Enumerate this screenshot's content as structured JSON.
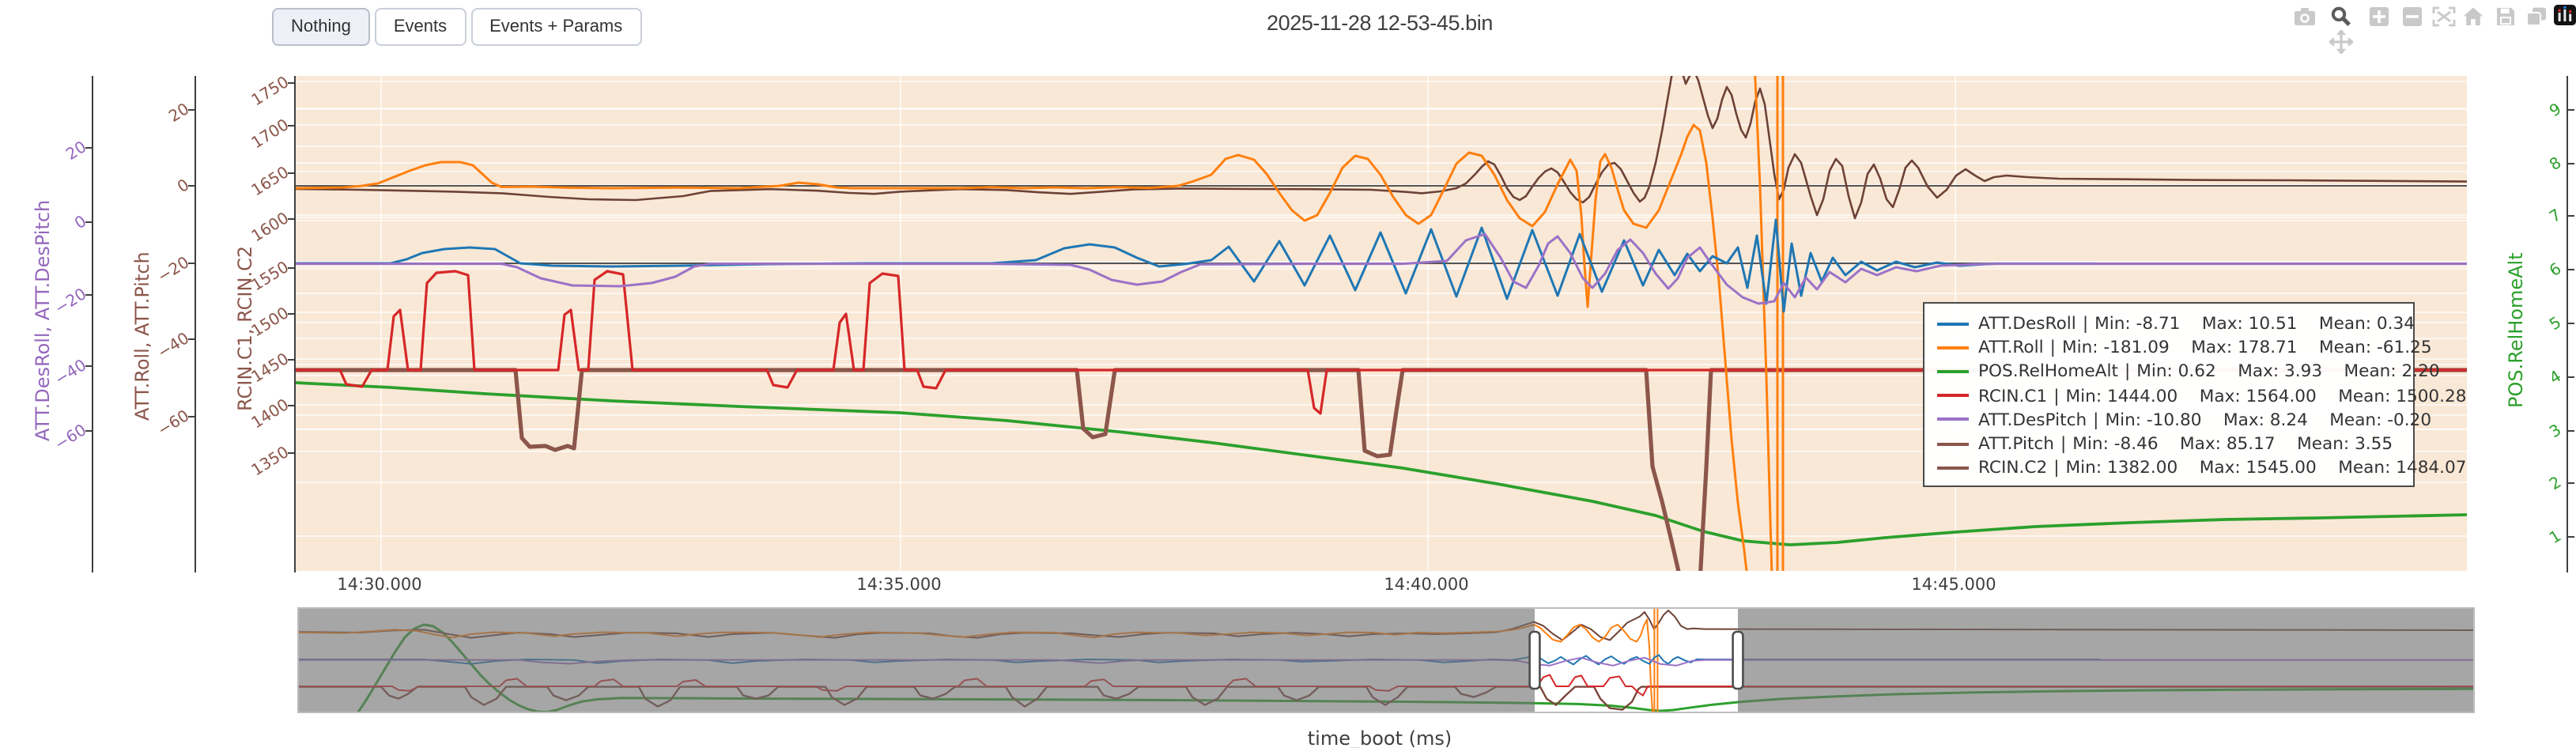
{
  "toolbar": {
    "buttons": [
      {
        "label": "Nothing",
        "active": true
      },
      {
        "label": "Events",
        "active": false
      },
      {
        "label": "Events + Params",
        "active": false
      }
    ]
  },
  "header": {
    "title": "2025-11-28 12-53-45.bin"
  },
  "modebar": {
    "icons": [
      "camera-icon",
      "zoom-icon",
      "pan-icon",
      "zoom-in-icon",
      "zoom-out-icon",
      "autoscale-icon",
      "home-icon",
      "save-icon",
      "copy-icon",
      "plotly-logo-icon"
    ]
  },
  "axes": {
    "y1": {
      "title": "ATT.DesRoll, ATT.DesPitch",
      "color": "#9467bd",
      "ticks": [
        "20",
        "0",
        "−20",
        "−40",
        "−60"
      ]
    },
    "y2": {
      "title": "ATT.Roll, ATT.Pitch",
      "color": "#8c564b",
      "ticks": [
        "20",
        "0",
        "−20",
        "−40",
        "−60"
      ]
    },
    "y3": {
      "title": "RCIN.C1, RCIN.C2",
      "color": "#8c564b",
      "ticks": [
        "1750",
        "1700",
        "1650",
        "1600",
        "1550",
        "1500",
        "1450",
        "1400",
        "1350"
      ]
    },
    "y4": {
      "title": "POS.RelHomeAlt",
      "color": "#2ca02c",
      "ticks": [
        "9",
        "8",
        "7",
        "6",
        "5",
        "4",
        "3",
        "2",
        "1"
      ]
    },
    "x": {
      "title": "time_boot (ms)",
      "ticks": [
        "14:30.000",
        "14:35.000",
        "14:40.000",
        "14:45.000"
      ]
    }
  },
  "legend": {
    "separator": "|",
    "entries": [
      {
        "name": "ATT.DesRoll",
        "color": "#1f77b4",
        "stats": "Min: -8.71    Max: 10.51    Mean: 0.34"
      },
      {
        "name": "ATT.Roll",
        "color": "#ff7f0e",
        "stats": "Min: -181.09    Max: 178.71    Mean: -61.25"
      },
      {
        "name": "POS.RelHomeAlt",
        "color": "#2ca02c",
        "stats": "Min: 0.62    Max: 3.93    Mean: 2.20"
      },
      {
        "name": "RCIN.C1",
        "color": "#d62728",
        "stats": "Min: 1444.00    Max: 1564.00    Mean: 1500.28"
      },
      {
        "name": "ATT.DesPitch",
        "color": "#9b72c7",
        "stats": "Min: -10.80    Max: 8.24    Mean: -0.20"
      },
      {
        "name": "ATT.Pitch",
        "color": "#8c564b",
        "stats": "Min: -8.46    Max: 85.17    Mean: 3.55"
      },
      {
        "name": "RCIN.C2",
        "color": "#8c564b",
        "stats": "Min: 1382.00    Max: 1545.00    Mean: 1484.07"
      }
    ]
  },
  "chart_data": {
    "type": "line",
    "title": "2025-11-28 12-53-45.bin",
    "xlabel": "time_boot (ms)",
    "x_tick_labels": [
      "14:30.000",
      "14:35.000",
      "14:40.000",
      "14:45.000"
    ],
    "legend_position": "right-middle",
    "grid": true,
    "y_axes": [
      {
        "id": "y1",
        "label": "ATT.DesRoll, ATT.DesPitch",
        "range_ticks": [
          20,
          0,
          -20,
          -40,
          -60
        ]
      },
      {
        "id": "y2",
        "label": "ATT.Roll, ATT.Pitch",
        "range_ticks": [
          20,
          0,
          -20,
          -40,
          -60
        ]
      },
      {
        "id": "y3",
        "label": "RCIN.C1, RCIN.C2",
        "range_ticks": [
          1750,
          1700,
          1650,
          1600,
          1550,
          1500,
          1450,
          1400,
          1350
        ]
      },
      {
        "id": "y4",
        "label": "POS.RelHomeAlt",
        "range_ticks": [
          9,
          8,
          7,
          6,
          5,
          4,
          3,
          2,
          1
        ],
        "side": "right"
      }
    ],
    "series": [
      {
        "name": "POS.RelHomeAlt",
        "axis": "y4",
        "color": "#2ca02c",
        "width": 1.9,
        "min": 0.62,
        "max": 3.93,
        "mean": 2.2,
        "segments": [
          "0,194 60,197 120,201 200,205.5 280,209 382,213 450,218 520,225 580,232 640,240 700,248 760,258 820,269 860,278 890,288 915,294 945,296.5 975,295 1005,292 1049,288.5 1100,285 1160,282.5 1220,280.5 1280,279.5 1373,277.5"
        ]
      },
      {
        "name": "RCIN.C2",
        "axis": "y3",
        "color": "#8c564b",
        "width": 2.6,
        "min": 1382.0,
        "max": 1545.0,
        "mean": 1484.07,
        "segments": [
          "0,186 139,186 143,229 148,234.5 158,234 164,236.5 172,234 176,235.5 181,186 494,186 498,223 504,228.5 512,226.5 518,186 672,186 676,237 684,240.5 692,239.5 696,212 700,186 854,186 858,247 864,269 870,294 876,320 888,320 892,248 895,186 1373,186"
        ]
      },
      {
        "name": "RCIN.C1",
        "axis": "y3",
        "color": "#d62728",
        "width": 1.6,
        "min": 1444.0,
        "max": 1564.0,
        "mean": 1500.28,
        "segments": [
          "0,186 28,186 32,195 42,196.5 48,186 58,186 62,152 66,148 71,186 79,186 83,131 89,124.5 101,123.5 109,126 113,186 166,186 170,151 174,148 179,186 185,186 189,129 197,123.5 207,125.5 213,186 298,186 302,195.5 311,197 317,186 340,186 344,156 348,150.5 353,186 359,186 363,131 371,125 381,126.5 385,186 393,186 397,196.5 405,197.5 411,186 494,186 640,186 644,210 648,213.5 652,186 940,186 1373,186"
        ]
      },
      {
        "name": "ATT.Pitch",
        "axis": "y2",
        "color": "#6e4237",
        "width": 1.3,
        "min": -8.46,
        "max": 85.17,
        "mean": 3.55,
        "segments": [
          "0,71.5 40,72 80,72.8 100,73.2 130,74.2 160,76.5 185,78 215,78.5 245,76 262,72.8 300,71.6 330,72.6 350,74 366,74.6 382,73.2 420,71.6 450,72.2 470,73.6 490,74.6 510,73.2 530,71.8 560,71.2 600,71.5 640,71.6 680,72 700,73.2 712,74.2 724,73 734,71 740,68 746,62 750,57.5 754,54 758,56 762,63 766,71 770,76.5 774,78.5 778,76 782,70 786,64.5 790,60.5 794,58.5 798,61 802,67 806,73.5 810,78 814,80 818,76.5 822,68.5 826,61 830,56 834,55 838,59 842,66.5 846,74 850,79.5 853,77 856,70 860,55 864,35 868,12 871,-5 876,-5 879,5 881,1 884,-4 887,3 890,14 893,25 896,33 899,27 902,15 905,7 908,12 911,24 914,34 917,39 920,30 923,16 926,8 929,18 932,40 935,62 938,78 941,72 944,58 948,49.5 952,55 958,76 962,88 966,78 970,60 974,52.5 978,57 982,76 986,90 990,80 994,62 998,56 1002,65 1006,78 1010,83 1014,72 1018,58 1022,53.5 1026,58 1032,70 1038,77 1044,72 1050,63 1056,59 1062,63 1068,66.5 1074,64 1082,63 1095,64 1115,65 1150,65.3 1200,65.8 1260,66 1320,66.4 1373,66.8"
        ]
      },
      {
        "name": "ATT.Roll",
        "axis": "y2",
        "color": "#ff7f0e",
        "width": 1.5,
        "min": -181.09,
        "max": 178.71,
        "mean": -61.25,
        "segments": [
          "0,71 30,70.5 42,69.5 52,68 62,64 72,60 82,56.5 92,54.5 104,54.5 112,56.5 118,62 124,67.5 130,70.2 150,70 170,70.6 200,71 240,70.6 280,71 306,69.5 318,67.5 330,68.5 342,70.5 352,71 420,71 440,70.3 460,71 480,70.5 500,71 520,70.4 540,70.8 558,69.5 568,66.5 579,62.5 588,52.5 596,50 606,53 614,62 622,74 630,85 638,91.5 646,88 654,74 662,58 670,50.5 678,52.5 686,62.5 694,76.5 702,88 710,93.5 718,88 726,72 734,55.5 742,48.5 750,50.5 758,62.5 766,78.5 774,90 782,95 790,86 798,68.5 806,53 810,60 813,88 815,120 817,146 819,118 822,78 825,54 828,49.5 832,58 836,72 840,85 846,93.5 854,96 862,85 870,65 876,50 880,38.5 884,31 888,34.5 892,55 896,90 900,130 904,180 908,230 912,270 916,300 920,335",
          "922,-20 926,70 930,190 934,335",
          "937,-20 937,335",
          "940.5,-20 940.5,335"
        ]
      },
      {
        "name": "ATT.DesRoll",
        "axis": "y1",
        "color": "#1f77b4",
        "width": 1.5,
        "min": -8.71,
        "max": 10.51,
        "mean": 0.34,
        "segments": [
          "0,118.5 60,118.5 70,116 80,112 94,109.5 110,108.5 126,109.5 134,114 142,118.5 162,120 200,120.5 245,120 300,119 360,118.5 440,118.5 468,116.5 486,109 502,106.5 518,108.5 532,115 546,120.5 562,119 579,116.5 590,108 606,130 622,104.5 638,132.5 654,101 670,135.5 686,99 702,137.5 718,97 734,139.5 750,96 766,141 782,97.5 798,139 812,100 826,136.5 840,104 852,132.5 862,110 872,126 880,112.5 888,123.5 896,114 905,118.5 912,108.5 918,134 924,101 930,144 936,91 941,149 946,106 952,139 958,112 965,130 972,115 980,126 990,117.5 1000,123 1012,117.5 1024,121 1038,118 1052,120 1075,118.7 1138,118.7"
        ]
      },
      {
        "name": "ATT.DesPitch",
        "axis": "y1",
        "color": "#9b72c7",
        "width": 1.5,
        "min": -10.8,
        "max": 8.24,
        "mean": -0.2,
        "segments": [
          "0,118.8 130,118.8 140,121 155,128 175,132.5 205,133 225,131 240,127 252,120.5 262,118.8 440,118.8 490,119.5 502,122.5 516,129 532,132 548,130 560,124 572,119.2 640,118.8 700,118.8 728,117 740,104 752,100 762,115 770,130 778,134 786,120 792,106 798,101.5 806,112 814,128 820,134 828,125 836,110 844,103.5 852,112 860,125 868,134.5 874,128 880,115 888,108.5 896,120 905,132 915,140 925,144 935,142.5 941,131 948,140 955,127.5 962,135 970,124 980,130.5 990,122 1000,126 1012,121 1025,123.5 1040,120 1060,119.2 1075,118.8 1373,118.8"
        ]
      }
    ],
    "rangeslider": {
      "selection_fraction": [
        0.568,
        0.662
      ],
      "series": [
        {
          "name": "POS.RelHomeAlt",
          "color": "#2ca02c",
          "width": 1.5,
          "segments": [
            "38,67 44,58 50,48 56,38 62,28 68,19 74,13.5 80,11 86,12 92,16 98,22 104,29 110,36 116,43 122,49 128,54 134,58.5 140,62 146,64.5 152,66 158,66.3 164,65 172,62 180,59.6 190,58.2 205,57.4 260,57.6 330,57.9 400,58.1 470,58.4 540,58.7 610,59.1 680,59.6 740,60.1 780,60.6 810,61.2 830,62.2 845,63.7 855,65 862,65.5 870,65 880,63.6 895,61.6 915,59.6 940,57.9 975,56.3 1010,55 1060,53.9 1110,53.1 1170,52.5 1230,52.1 1290,51.9 1377,51.6"
          ]
        },
        {
          "name": "RCIN.C2",
          "color": "#7a463a",
          "width": 1.2,
          "segments": [
            "0,50.3 53,50.3 58,55.8 64,57.8 70,54.8 76,50.3 106,50.3 110,56.8 118,61.8 126,57.8 132,50.3 158,50.3 162,55.8 170,58.8 178,55.8 184,50.3 216,50.3 220,57.8 228,62.8 236,58.8 242,50.3 278,50.3 282,55.8 290,57.8 298,55.8 304,50.3 334,50.3 338,56.8 346,61.8 354,57.8 360,50.3 390,50.3 394,55.8 402,57.8 410,54.8 416,50.3 448,50.3 452,56.8 460,62.8 468,57.8 474,50.3 506,50.3 510,55.8 518,57.8 526,54.8 532,50.3 562,50.3 566,56.8 574,61.8 582,57.8 588,50.3 620,50.3 624,55.8 632,58.8 640,55.8 646,50.3 676,50.3 680,56.8 688,61.8 696,56.8 702,50.3 732,50.3 736,54.8 744,56.8 752,53.8 758,50.3 786,50.3 790,57.8 796,61.8 802,55.8 808,50.3 820,50.3 824,57.8 830,63.8 838,64.8 844,59.8 848,51.8 850,50.3 1377,50.3"
          ]
        },
        {
          "name": "RCIN.C1",
          "color": "#d62728",
          "width": 1,
          "segments": [
            "0,50 60,50 64,52.3 71,52.9 77,50 128,50 132,46.2 139,45.2 145,50 188,50 192,46.6 200,45.6 206,50 240,50 244,47 252,46 258,50 328,50 332,52.3 341,52.9 347,50 418,50 422,46.2 430,45.2 436,50 498,50 502,46.6 510,45.6 516,50 588,50 592,46.2 600,45.2 606,50 678,50 682,52.3 690,52.9 696,50 768,50 784,50 788,44.2 792,42.7 796,50 804,50 808,44.2 812,43.2 816,50 826,50 830,44.7 836,43.7 840,50 844,50 848,53.8 851,55.8 854,50 880,50 1377,50"
          ]
        },
        {
          "name": "ATT.Pitch",
          "color": "#6e4237",
          "width": 1,
          "segments": [
            "0,15.6 40,16 60,14.7 80,14.2 95,16.8 110,19.3 125,17.6 140,16 160,17 175,18.8 190,17.6 210,16 240,16.5 260,18.8 275,17 300,16.1 320,17.8 340,19.3 355,17 370,16.1 400,16.5 415,18.4 430,19.3 445,17 460,16.1 490,16.5 505,17.8 520,18.8 535,17 550,16.1 580,16.5 595,18.4 610,17 630,16.1 650,17 665,18.4 680,17 700,16.5 720,17 740,16.5 758,15.8 768,13.8 776,11.2 782,9.2 788,11.8 794,16.8 800,20.8 806,16 812,11 818,13.8 824,18.8 830,20.8 836,15 841,9.8 845,7.8 849,5.8 852,3 855,7.8 858,13.8 861,9.8 864,4.8 867,2 871,5.8 875,11.8 879,13.8 883,13.4 890,13.8 950,13.9 1050,14 1150,14.2 1250,14.3 1377,14.5"
          ]
        },
        {
          "name": "ATT.Roll",
          "color": "#ff7f0e",
          "width": 1,
          "segments": [
            "0,16 30,16.3 48,15.2 62,14.2 76,15 88,17.5 98,19.2 110,17 124,15.8 145,16.3 162,18.3 174,17 192,15.8 222,16.3 240,18.3 252,17 268,15.9 298,16 316,17.4 330,18.8 346,17 362,15.9 392,16.3 408,17.8 422,18.8 438,17 452,15.9 478,16 492,17.8 504,19.2 516,17 530,15.9 558,16.3 574,17.8 588,17 604,15.9 624,16.3 638,17.8 650,17 664,15.9 680,16 694,17.4 708,16 724,16.4 740,16 758,15.4 768,14.4 776,12.8 782,11 786,13 790,16.8 794,20.5 799,21.8 803,17.8 807,12.8 811,11 815,14 819,19 823,21.8 827,18.8 831,12.8 835,11 839,15 843,20 847,21.8 849.5,17.8 851.5,11.8 853.5,7.8 855,25 856,50 857,66",
            "858.2,0 858.2,67",
            "860.2,0 860.2,67"
          ]
        },
        {
          "name": "ATT.DesRoll",
          "color": "#1f77b4",
          "width": 1,
          "segments": [
            "0,33 80,33 95,34.4 110,35.8 125,34 145,33 175,33.4 190,35.4 205,34 230,33 260,33.4 275,35.4 290,34 320,33 350,33.4 365,34.9 380,34 410,33 440,33.4 455,34.9 470,34 500,33 530,33.4 545,34.9 560,34 590,33 620,33.3 635,34.4 650,34 680,33 710,33.4 725,34.9 740,34 755,33 768,33.4 777,31.9 783,30.4 787,32.9 791,35.4 795,33.9 799,31.4 803,33.9 807,36.2 811,32.9 815,30.7 819,33.9 823,36.2 827,32.9 831,31 835,33.9 839,35.8 843,32.9 847,31.4 851,33.9 855,35.8 858,31.9 861,30.2 864,33.9 867,35.8 870,32.9 873,31.4 877,33.4 881,34.9 885,32.9 892,33 1000,33 1140,33"
          ]
        },
        {
          "name": "ATT.DesPitch",
          "color": "#9b72c7",
          "width": 1,
          "segments": [
            "0,33.3 140,33.3 155,34.9 172,35.7 192,34.1 212,33.3 480,33.3 494,34.4 508,35.4 522,34 536,33.3 758,33.3 772,33.9 782,35.9 792,36.9 802,33.9 812,31.9 822,34.9 832,36.9 842,33.9 852,31.9 862,35.9 872,36.9 882,33.9 890,33.3 1377,33.3"
          ]
        }
      ]
    }
  }
}
